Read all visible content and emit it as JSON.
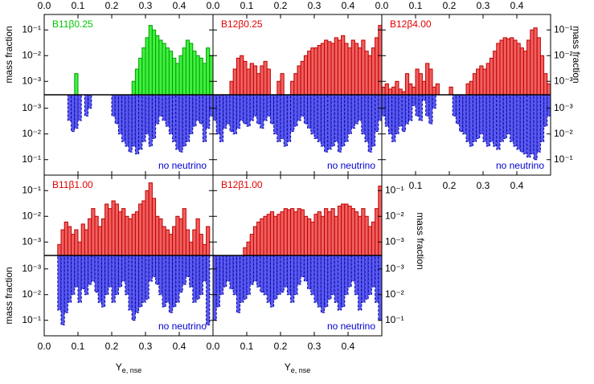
{
  "chart_data": {
    "type": "histogram",
    "ylabel": "mass fraction",
    "xlabel": {
      "main": "Y",
      "sub": "e, nse"
    },
    "log_y": true,
    "xlim": [
      0,
      0.5
    ],
    "xticks": [
      {
        "value": 0,
        "label": "0.0"
      },
      0.1,
      0.2,
      0.3,
      0.4
    ],
    "ylim": [
      0.0003,
      0.4
    ],
    "yticks": [
      {
        "value": 0.001,
        "label": "10⁻³"
      },
      {
        "value": 0.01,
        "label": "10⁻²"
      },
      {
        "value": 0.1,
        "label": "10⁻¹"
      }
    ],
    "bins": [
      0,
      0.01,
      0.02,
      0.03,
      0.04,
      0.05,
      0.06,
      0.07,
      0.08,
      0.09,
      0.1,
      0.11,
      0.12,
      0.13,
      0.14,
      0.15,
      0.16,
      0.17,
      0.18,
      0.19,
      0.2,
      0.21,
      0.22,
      0.23,
      0.24,
      0.25,
      0.26,
      0.27,
      0.28,
      0.29,
      0.3,
      0.31,
      0.32,
      0.33,
      0.34,
      0.35,
      0.36,
      0.37,
      0.38,
      0.39,
      0.4,
      0.41,
      0.42,
      0.43,
      0.44,
      0.45,
      0.46,
      0.47,
      0.48,
      0.49,
      0.5
    ],
    "panels": [
      {
        "title": "B11β0.25",
        "title_color": "#00c800",
        "annotation": "no neutrino",
        "series": [
          {
            "color": "#40f040",
            "edge": "#00a000",
            "values": [
              null,
              null,
              null,
              null,
              null,
              null,
              null,
              null,
              null,
              0.002,
              null,
              null,
              null,
              null,
              null,
              null,
              null,
              null,
              null,
              null,
              null,
              null,
              null,
              null,
              null,
              null,
              0.001,
              0.003,
              0.008,
              0.02,
              0.05,
              0.15,
              0.1,
              0.06,
              0.04,
              0.03,
              0.02,
              0.015,
              0.008,
              0.005,
              0.01,
              0.02,
              0.04,
              0.03,
              0.015,
              0.01,
              0.008,
              0.005,
              0.02,
              0.01
            ]
          },
          {
            "color": "#5a5af0",
            "edge": "#0000a0",
            "values": [
              null,
              null,
              null,
              null,
              null,
              null,
              null,
              0.003,
              0.008,
              0.006,
              0.003,
              null,
              0.002,
              0.001,
              null,
              null,
              null,
              null,
              null,
              null,
              0.002,
              0.004,
              0.01,
              0.02,
              0.03,
              0.05,
              0.03,
              0.06,
              0.04,
              0.02,
              0.01,
              0.03,
              0.015,
              0.004,
              0.002,
              0.003,
              0.005,
              0.01,
              0.02,
              0.04,
              0.05,
              0.03,
              0.02,
              0.01,
              0.005,
              0.003,
              0.004,
              0.02,
              0.006,
              0.002
            ]
          }
        ]
      },
      {
        "title": "B12β0.25",
        "title_color": "#e00000",
        "annotation": "no neutrino",
        "series": [
          {
            "color": "#f06060",
            "edge": "#c00000",
            "values": [
              null,
              null,
              null,
              null,
              null,
              0.001,
              0.003,
              0.008,
              0.01,
              0.006,
              0.003,
              0.005,
              0.004,
              0.002,
              0.004,
              0.006,
              0.003,
              null,
              null,
              0.001,
              0.002,
              null,
              null,
              0.001,
              0.002,
              0.004,
              0.006,
              0.01,
              0.015,
              0.02,
              0.02,
              0.025,
              0.03,
              0.04,
              0.035,
              0.03,
              0.05,
              0.04,
              0.06,
              0.03,
              0.02,
              0.04,
              0.03,
              0.02,
              0.04,
              0.015,
              0.01,
              0.02,
              0.05,
              0.15
            ]
          },
          {
            "color": "#5a5af0",
            "edge": "#0000a0",
            "values": [
              0.003,
              0.01,
              0.02,
              0.006,
              0.004,
              0.008,
              0.01,
              0.006,
              0.003,
              0.004,
              0.005,
              0.003,
              0.002,
              0.004,
              0.006,
              0.003,
              0.002,
              0.004,
              0.01,
              0.02,
              0.015,
              0.03,
              0.02,
              0.008,
              0.005,
              0.003,
              0.002,
              0.004,
              0.006,
              0.01,
              0.015,
              0.02,
              0.03,
              0.05,
              0.04,
              0.03,
              0.02,
              0.05,
              0.03,
              0.02,
              0.01,
              0.006,
              0.004,
              0.003,
              0.01,
              0.02,
              0.05,
              0.03,
              0.008,
              0.003
            ]
          }
        ]
      },
      {
        "title": "B12β4.00",
        "title_color": "#e00000",
        "annotation": "no neutrino",
        "series": [
          {
            "color": "#f06060",
            "edge": "#c00000",
            "values": [
              0.0006,
              0.0008,
              0.0005,
              0.0006,
              0.001,
              0.0005,
              0.0004,
              0.002,
              0.0008,
              0.0006,
              0.003,
              0.002,
              0.001,
              0.005,
              0.003,
              0.0006,
              0.0008,
              null,
              null,
              null,
              0.0006,
              null,
              null,
              null,
              null,
              0.0008,
              0.001,
              0.002,
              0.003,
              0.004,
              0.003,
              0.005,
              0.008,
              0.015,
              0.03,
              0.04,
              0.05,
              0.045,
              0.05,
              0.04,
              0.03,
              0.02,
              0.015,
              0.04,
              0.1,
              0.12,
              0.05,
              0.01,
              0.002,
              0.0008
            ]
          },
          {
            "color": "#5a5af0",
            "edge": "#0000a0",
            "values": [
              0.002,
              0.005,
              0.01,
              0.02,
              0.01,
              0.005,
              0.008,
              0.004,
              0.003,
              0.0008,
              0.002,
              0.003,
              0.0005,
              0.002,
              0.004,
              0.001,
              null,
              null,
              null,
              null,
              null,
              0.002,
              0.004,
              0.008,
              0.01,
              0.02,
              0.03,
              0.02,
              0.015,
              0.01,
              0.02,
              0.03,
              0.02,
              0.03,
              0.04,
              0.02,
              0.015,
              0.01,
              0.02,
              0.03,
              0.04,
              0.05,
              0.06,
              0.08,
              0.06,
              0.1,
              0.05,
              0.02,
              0.005,
              0.002
            ]
          }
        ]
      },
      {
        "title": "B11β1.00",
        "title_color": "#e00000",
        "annotation": "no neutrino",
        "series": [
          {
            "color": "#f06060",
            "edge": "#c00000",
            "values": [
              null,
              null,
              null,
              null,
              0.0008,
              0.003,
              0.006,
              0.004,
              0.002,
              0.003,
              0.001,
              0.005,
              0.003,
              0.008,
              0.02,
              0.01,
              0.004,
              0.008,
              0.03,
              0.02,
              0.04,
              0.03,
              0.015,
              0.02,
              0.01,
              0.008,
              0.012,
              0.015,
              0.03,
              0.04,
              0.1,
              0.2,
              0.05,
              0.01,
              0.008,
              0.004,
              0.003,
              0.002,
              0.004,
              0.01,
              0.008,
              0.02,
              0.003,
              0.001,
              0.003,
              0.008,
              0.002,
              0.0008,
              0.004,
              null
            ]
          },
          {
            "color": "#5a5af0",
            "edge": "#0000a0",
            "values": [
              null,
              null,
              null,
              null,
              0.04,
              0.15,
              0.05,
              0.02,
              0.01,
              0.005,
              0.02,
              0.006,
              0.01,
              0.004,
              0.003,
              0.008,
              0.02,
              0.03,
              0.01,
              0.005,
              0.02,
              0.01,
              0.005,
              0.003,
              0.01,
              0.04,
              0.1,
              0.05,
              0.03,
              0.02,
              0.015,
              0.003,
              0.002,
              0.004,
              0.01,
              0.03,
              0.02,
              0.05,
              0.03,
              0.02,
              0.008,
              0.004,
              0.002,
              0.005,
              0.02,
              0.015,
              0.01,
              0.003,
              0.15,
              null
            ]
          }
        ]
      },
      {
        "title": "B12β1.00",
        "title_color": "#e00000",
        "annotation": "no neutrino",
        "series": [
          {
            "color": "#f06060",
            "edge": "#c00000",
            "values": [
              null,
              null,
              null,
              null,
              null,
              null,
              null,
              null,
              null,
              0.0006,
              0.001,
              0.002,
              0.004,
              0.006,
              0.008,
              0.01,
              0.012,
              0.015,
              0.01,
              0.012,
              0.015,
              0.02,
              0.018,
              0.02,
              0.015,
              0.02,
              0.018,
              0.01,
              0.008,
              0.006,
              0.012,
              0.015,
              0.01,
              0.02,
              0.015,
              0.02,
              0.01,
              0.025,
              0.03,
              0.03,
              0.025,
              0.02,
              0.015,
              0.01,
              0.02,
              0.01,
              0.004,
              0.006,
              0.02,
              0.15
            ]
          },
          {
            "color": "#5a5af0",
            "edge": "#0000a0",
            "values": [
              0.1,
              0.03,
              0.01,
              0.005,
              0.003,
              0.006,
              0.01,
              0.05,
              0.02,
              0.015,
              0.01,
              0.004,
              0.003,
              0.005,
              0.008,
              0.01,
              0.02,
              0.03,
              0.015,
              0.01,
              0.008,
              0.005,
              0.01,
              0.02,
              0.01,
              0.004,
              0.002,
              0.003,
              0.006,
              0.01,
              0.02,
              0.03,
              0.05,
              0.03,
              0.015,
              0.01,
              0.02,
              0.04,
              0.03,
              0.01,
              0.005,
              0.003,
              0.01,
              0.04,
              0.02,
              0.015,
              0.01,
              0.005,
              0.02,
              0.1
            ]
          }
        ]
      }
    ]
  }
}
